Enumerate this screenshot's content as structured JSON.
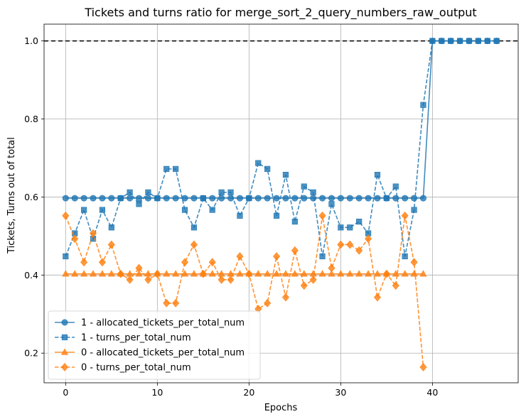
{
  "chart_data": {
    "type": "line",
    "title": "Tickets and turns ratio for merge_sort_2_query_numbers_raw_output",
    "xlabel": "Epochs",
    "ylabel": "Tickets, Turns out of total",
    "xlim": [
      -2.35,
      49.35
    ],
    "ylim": [
      0.124,
      1.043
    ],
    "xticks": [
      0,
      10,
      20,
      30,
      40
    ],
    "yticks": [
      0.2,
      0.4,
      0.6,
      0.8,
      1.0
    ],
    "yticks_labels": [
      "0.2",
      "0.4",
      "0.6",
      "0.8",
      "1.0"
    ],
    "grid": true,
    "legend_position": "lower-left",
    "reference_line": {
      "y": 1.0,
      "style": "dashed",
      "color": "#000000"
    },
    "series": [
      {
        "name": "1 - allocated_tickets_per_total_num",
        "color": "#1f77b4",
        "linestyle": "solid",
        "marker": "circle",
        "x": [
          0,
          1,
          2,
          3,
          4,
          5,
          6,
          7,
          8,
          9,
          10,
          11,
          12,
          13,
          14,
          15,
          16,
          17,
          18,
          19,
          20,
          21,
          22,
          23,
          24,
          25,
          26,
          27,
          28,
          29,
          30,
          31,
          32,
          33,
          34,
          35,
          36,
          37,
          38,
          39,
          40,
          41,
          42,
          43,
          44,
          45,
          46,
          47
        ],
        "values": [
          0.597,
          0.597,
          0.597,
          0.597,
          0.597,
          0.597,
          0.597,
          0.597,
          0.597,
          0.597,
          0.597,
          0.597,
          0.597,
          0.597,
          0.597,
          0.597,
          0.597,
          0.597,
          0.597,
          0.597,
          0.597,
          0.597,
          0.597,
          0.597,
          0.597,
          0.597,
          0.597,
          0.597,
          0.597,
          0.597,
          0.597,
          0.597,
          0.597,
          0.597,
          0.597,
          0.597,
          0.597,
          0.597,
          0.597,
          0.597,
          1.0,
          1.0,
          1.0,
          1.0,
          1.0,
          1.0,
          1.0,
          1.0
        ]
      },
      {
        "name": "1 - turns_per_total_num",
        "color": "#1f77b4",
        "linestyle": "dashed",
        "marker": "square",
        "x": [
          0,
          1,
          2,
          3,
          4,
          5,
          6,
          7,
          8,
          9,
          10,
          11,
          12,
          13,
          14,
          15,
          16,
          17,
          18,
          19,
          20,
          21,
          22,
          23,
          24,
          25,
          26,
          27,
          28,
          29,
          30,
          31,
          32,
          33,
          34,
          35,
          36,
          37,
          38,
          39,
          40,
          41,
          42,
          43,
          44,
          45,
          46,
          47
        ],
        "values": [
          0.448,
          0.507,
          0.567,
          0.493,
          0.567,
          0.522,
          0.597,
          0.612,
          0.582,
          0.612,
          0.597,
          0.672,
          0.672,
          0.567,
          0.522,
          0.597,
          0.567,
          0.612,
          0.612,
          0.552,
          0.597,
          0.687,
          0.672,
          0.552,
          0.657,
          0.537,
          0.627,
          0.612,
          0.448,
          0.582,
          0.522,
          0.522,
          0.537,
          0.507,
          0.657,
          0.597,
          0.627,
          0.448,
          0.567,
          0.836,
          1.0,
          1.0,
          1.0,
          1.0,
          1.0,
          1.0,
          1.0,
          1.0
        ]
      },
      {
        "name": "0 - allocated_tickets_per_total_num",
        "color": "#ff7f0e",
        "linestyle": "solid",
        "marker": "triangle",
        "x": [
          0,
          1,
          2,
          3,
          4,
          5,
          6,
          7,
          8,
          9,
          10,
          11,
          12,
          13,
          14,
          15,
          16,
          17,
          18,
          19,
          20,
          21,
          22,
          23,
          24,
          25,
          26,
          27,
          28,
          29,
          30,
          31,
          32,
          33,
          34,
          35,
          36,
          37,
          38,
          39
        ],
        "values": [
          0.403,
          0.403,
          0.403,
          0.403,
          0.403,
          0.403,
          0.403,
          0.403,
          0.403,
          0.403,
          0.403,
          0.403,
          0.403,
          0.403,
          0.403,
          0.403,
          0.403,
          0.403,
          0.403,
          0.403,
          0.403,
          0.403,
          0.403,
          0.403,
          0.403,
          0.403,
          0.403,
          0.403,
          0.403,
          0.403,
          0.403,
          0.403,
          0.403,
          0.403,
          0.403,
          0.403,
          0.403,
          0.403,
          0.403,
          0.403
        ]
      },
      {
        "name": "0 - turns_per_total_num",
        "color": "#ff7f0e",
        "linestyle": "dashed",
        "marker": "diamond",
        "x": [
          0,
          1,
          2,
          3,
          4,
          5,
          6,
          7,
          8,
          9,
          10,
          11,
          12,
          13,
          14,
          15,
          16,
          17,
          18,
          19,
          20,
          21,
          22,
          23,
          24,
          25,
          26,
          27,
          28,
          29,
          30,
          31,
          32,
          33,
          34,
          35,
          36,
          37,
          38,
          39
        ],
        "values": [
          0.552,
          0.493,
          0.433,
          0.507,
          0.433,
          0.478,
          0.403,
          0.388,
          0.418,
          0.388,
          0.403,
          0.328,
          0.328,
          0.433,
          0.478,
          0.403,
          0.433,
          0.388,
          0.388,
          0.448,
          0.403,
          0.313,
          0.328,
          0.448,
          0.343,
          0.463,
          0.373,
          0.388,
          0.552,
          0.418,
          0.478,
          0.478,
          0.463,
          0.493,
          0.343,
          0.403,
          0.373,
          0.552,
          0.433,
          0.164
        ]
      }
    ]
  }
}
